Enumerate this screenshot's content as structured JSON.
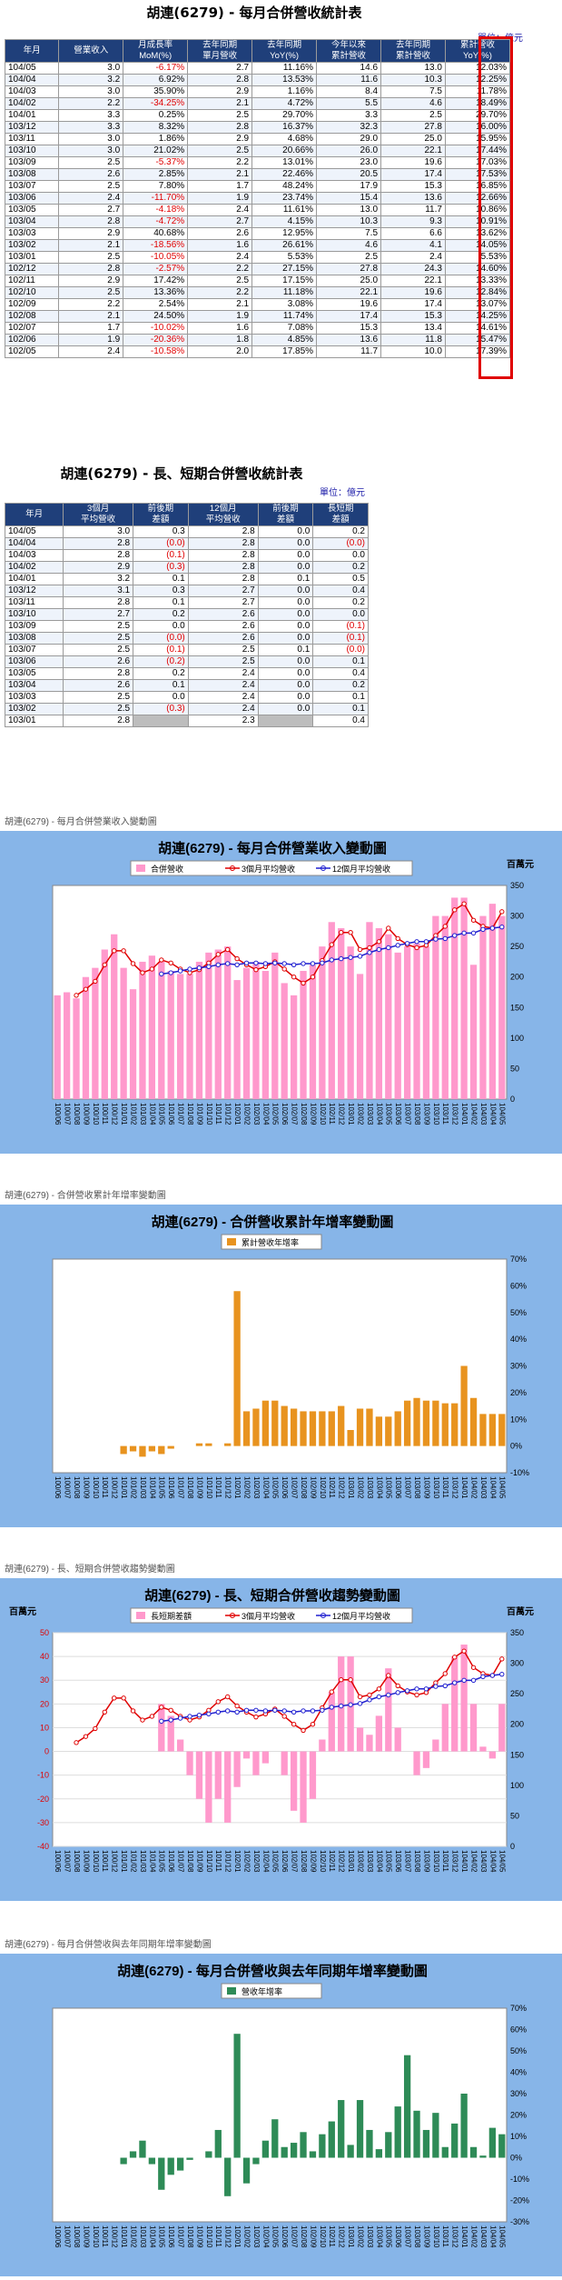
{
  "table1": {
    "title": "胡連(6279) - 每月合併營收統計表",
    "unit": "單位：億元",
    "headers": [
      "年月",
      "營業收入",
      "月成長率 MoM(%)",
      "去年同期 單月營收",
      "去年同期 YoY(%)",
      "今年以來 累計營收",
      "去年同期 累計營收",
      "累計營收 YoY(%)"
    ],
    "rows": [
      [
        "104/05",
        "3.0",
        "-6.17%",
        "2.7",
        "11.16%",
        "14.6",
        "13.0",
        "12.03%"
      ],
      [
        "104/04",
        "3.2",
        "6.92%",
        "2.8",
        "13.53%",
        "11.6",
        "10.3",
        "12.25%"
      ],
      [
        "104/03",
        "3.0",
        "35.90%",
        "2.9",
        "1.16%",
        "8.4",
        "7.5",
        "11.78%"
      ],
      [
        "104/02",
        "2.2",
        "-34.25%",
        "2.1",
        "4.72%",
        "5.5",
        "4.6",
        "18.49%"
      ],
      [
        "104/01",
        "3.3",
        "0.25%",
        "2.5",
        "29.70%",
        "3.3",
        "2.5",
        "29.70%"
      ],
      [
        "103/12",
        "3.3",
        "8.32%",
        "2.8",
        "16.37%",
        "32.3",
        "27.8",
        "16.00%"
      ],
      [
        "103/11",
        "3.0",
        "1.86%",
        "2.9",
        "4.68%",
        "29.0",
        "25.0",
        "15.95%"
      ],
      [
        "103/10",
        "3.0",
        "21.02%",
        "2.5",
        "20.66%",
        "26.0",
        "22.1",
        "17.44%"
      ],
      [
        "103/09",
        "2.5",
        "-5.37%",
        "2.2",
        "13.01%",
        "23.0",
        "19.6",
        "17.03%"
      ],
      [
        "103/08",
        "2.6",
        "2.85%",
        "2.1",
        "22.46%",
        "20.5",
        "17.4",
        "17.53%"
      ],
      [
        "103/07",
        "2.5",
        "7.80%",
        "1.7",
        "48.24%",
        "17.9",
        "15.3",
        "16.85%"
      ],
      [
        "103/06",
        "2.4",
        "-11.70%",
        "1.9",
        "23.74%",
        "15.4",
        "13.6",
        "12.66%"
      ],
      [
        "103/05",
        "2.7",
        "-4.18%",
        "2.4",
        "11.61%",
        "13.0",
        "11.7",
        "10.86%"
      ],
      [
        "103/04",
        "2.8",
        "-4.72%",
        "2.7",
        "4.15%",
        "10.3",
        "9.3",
        "10.91%"
      ],
      [
        "103/03",
        "2.9",
        "40.68%",
        "2.6",
        "12.95%",
        "7.5",
        "6.6",
        "13.62%"
      ],
      [
        "103/02",
        "2.1",
        "-18.56%",
        "1.6",
        "26.61%",
        "4.6",
        "4.1",
        "14.05%"
      ],
      [
        "103/01",
        "2.5",
        "-10.05%",
        "2.4",
        "5.53%",
        "2.5",
        "2.4",
        "5.53%"
      ],
      [
        "102/12",
        "2.8",
        "-2.57%",
        "2.2",
        "27.15%",
        "27.8",
        "24.3",
        "14.60%"
      ],
      [
        "102/11",
        "2.9",
        "17.42%",
        "2.5",
        "17.15%",
        "25.0",
        "22.1",
        "13.33%"
      ],
      [
        "102/10",
        "2.5",
        "13.36%",
        "2.2",
        "11.18%",
        "22.1",
        "19.6",
        "12.84%"
      ],
      [
        "102/09",
        "2.2",
        "2.54%",
        "2.1",
        "3.08%",
        "19.6",
        "17.4",
        "13.07%"
      ],
      [
        "102/08",
        "2.1",
        "24.50%",
        "1.9",
        "11.74%",
        "17.4",
        "15.3",
        "14.25%"
      ],
      [
        "102/07",
        "1.7",
        "-10.02%",
        "1.6",
        "7.08%",
        "15.3",
        "13.4",
        "14.61%"
      ],
      [
        "102/06",
        "1.9",
        "-20.36%",
        "1.8",
        "4.85%",
        "13.6",
        "11.8",
        "15.47%"
      ],
      [
        "102/05",
        "2.4",
        "-10.58%",
        "2.0",
        "17.85%",
        "11.7",
        "10.0",
        "17.39%"
      ]
    ]
  },
  "table2": {
    "title": "胡連(6279) - 長、短期合併營收統計表",
    "unit": "單位：億元",
    "headers": [
      "年月",
      "3個月 平均營收",
      "前後期 差額",
      "12個月 平均營收",
      "前後期 差額",
      "長短期 差額"
    ],
    "rows": [
      [
        "104/05",
        "3.0",
        "0.3",
        "2.8",
        "0.0",
        "0.2"
      ],
      [
        "104/04",
        "2.8",
        "(0.0)",
        "2.8",
        "0.0",
        "(0.0)"
      ],
      [
        "104/03",
        "2.8",
        "(0.1)",
        "2.8",
        "0.0",
        "0.0"
      ],
      [
        "104/02",
        "2.9",
        "(0.3)",
        "2.8",
        "0.0",
        "0.2"
      ],
      [
        "104/01",
        "3.2",
        "0.1",
        "2.8",
        "0.1",
        "0.5"
      ],
      [
        "103/12",
        "3.1",
        "0.3",
        "2.7",
        "0.0",
        "0.4"
      ],
      [
        "103/11",
        "2.8",
        "0.1",
        "2.7",
        "0.0",
        "0.2"
      ],
      [
        "103/10",
        "2.7",
        "0.2",
        "2.6",
        "0.0",
        "0.0"
      ],
      [
        "103/09",
        "2.5",
        "0.0",
        "2.6",
        "0.0",
        "(0.1)"
      ],
      [
        "103/08",
        "2.5",
        "(0.0)",
        "2.6",
        "0.0",
        "(0.1)"
      ],
      [
        "103/07",
        "2.5",
        "(0.1)",
        "2.5",
        "0.1",
        "(0.0)"
      ],
      [
        "103/06",
        "2.6",
        "(0.2)",
        "2.5",
        "0.0",
        "0.1"
      ],
      [
        "103/05",
        "2.8",
        "0.2",
        "2.4",
        "0.0",
        "0.4"
      ],
      [
        "103/04",
        "2.6",
        "0.1",
        "2.4",
        "0.0",
        "0.2"
      ],
      [
        "103/03",
        "2.5",
        "0.0",
        "2.4",
        "0.0",
        "0.1"
      ],
      [
        "103/02",
        "2.5",
        "(0.3)",
        "2.4",
        "0.0",
        "0.1"
      ],
      [
        "103/01",
        "2.8",
        "",
        "2.3",
        "",
        "0.4"
      ]
    ]
  },
  "captions": {
    "c1": "胡連(6279) - 每月合併營業收入變動圖",
    "c2": "胡連(6279) - 合併營收累計年增率變動圖",
    "c3": "胡連(6279) - 長、短期合併營收趨勢變動圖",
    "c4": "胡連(6279) - 每月合併營收與去年同期年增率變動圖"
  },
  "colors": {
    "header_bg": "#1f3f7a",
    "panel_bg": "#87b5e8",
    "pink": "#ff99cc",
    "orange": "#e8931f",
    "green": "#2e8b57",
    "red": "#e00000",
    "blue": "#1f1fd0"
  },
  "months": [
    "100/06",
    "100/07",
    "100/08",
    "100/09",
    "100/10",
    "100/11",
    "100/12",
    "101/01",
    "101/02",
    "101/03",
    "101/04",
    "101/05",
    "101/06",
    "101/07",
    "101/08",
    "101/09",
    "101/10",
    "101/11",
    "101/12",
    "102/01",
    "102/02",
    "102/03",
    "102/04",
    "102/05",
    "102/06",
    "102/07",
    "102/08",
    "102/09",
    "102/10",
    "102/11",
    "102/12",
    "103/01",
    "103/02",
    "103/03",
    "103/04",
    "103/05",
    "103/06",
    "103/07",
    "103/08",
    "103/09",
    "103/10",
    "103/11",
    "103/12",
    "104/01",
    "104/02",
    "104/03",
    "104/04",
    "104/05"
  ],
  "chart_data": [
    {
      "type": "bar",
      "title": "胡連(6279) - 每月合併營業收入變動圖",
      "unit_label": "百萬元",
      "ylim": [
        0,
        350
      ],
      "yticks": [
        0,
        50,
        100,
        150,
        200,
        250,
        300,
        350
      ],
      "legend": [
        "合併營收",
        "3個月平均營收",
        "12個月平均營收"
      ],
      "legend_position": "top",
      "series": [
        {
          "name": "合併營收",
          "type": "bar",
          "values": [
            170,
            175,
            165,
            200,
            215,
            245,
            270,
            215,
            180,
            225,
            235,
            225,
            210,
            205,
            205,
            225,
            240,
            245,
            250,
            195,
            215,
            225,
            210,
            240,
            190,
            170,
            210,
            220,
            250,
            290,
            280,
            250,
            205,
            290,
            280,
            270,
            240,
            250,
            255,
            250,
            300,
            300,
            330,
            330,
            220,
            300,
            320,
            300
          ]
        },
        {
          "name": "3個月平均營收",
          "type": "line",
          "values": [
            null,
            null,
            170,
            180,
            193,
            220,
            243,
            243,
            222,
            207,
            213,
            228,
            223,
            213,
            207,
            212,
            223,
            237,
            245,
            230,
            220,
            212,
            217,
            225,
            213,
            200,
            190,
            200,
            227,
            253,
            273,
            273,
            245,
            248,
            258,
            280,
            263,
            253,
            248,
            252,
            268,
            283,
            310,
            320,
            293,
            283,
            280,
            307
          ]
        },
        {
          "name": "12個月平均營收",
          "type": "line",
          "values": [
            null,
            null,
            null,
            null,
            null,
            null,
            null,
            null,
            null,
            null,
            null,
            205,
            207,
            210,
            213,
            215,
            217,
            220,
            222,
            220,
            223,
            223,
            222,
            223,
            222,
            220,
            222,
            222,
            223,
            228,
            230,
            232,
            234,
            240,
            245,
            248,
            252,
            255,
            258,
            258,
            262,
            263,
            268,
            272,
            272,
            278,
            280,
            282
          ]
        }
      ]
    },
    {
      "type": "bar",
      "title": "胡連(6279) - 合併營收累計年增率變動圖",
      "ylim": [
        -10,
        70
      ],
      "yticks": [
        "-10%",
        "0%",
        "10%",
        "20%",
        "30%",
        "40%",
        "50%",
        "60%",
        "70%"
      ],
      "legend": [
        "累計營收年增率"
      ],
      "legend_position": "top",
      "series": [
        {
          "name": "累計營收年增率",
          "values": [
            null,
            null,
            null,
            null,
            null,
            null,
            null,
            -3,
            -2,
            -4,
            -2,
            -3,
            -1,
            0,
            0,
            1,
            1,
            0,
            1,
            58,
            13,
            14,
            17,
            17,
            15,
            14,
            13,
            13,
            13,
            13,
            15,
            6,
            14,
            14,
            11,
            11,
            13,
            17,
            18,
            17,
            17,
            16,
            16,
            30,
            18,
            12,
            12,
            12
          ]
        }
      ]
    },
    {
      "type": "bar",
      "title": "胡連(6279) - 長、短期合併營收趨勢變動圖",
      "unit_label": "百萬元",
      "left_ylim": [
        -40,
        50
      ],
      "left_yticks": [
        -40,
        -30,
        -20,
        -10,
        0,
        10,
        20,
        30,
        40,
        50
      ],
      "right_ylim": [
        0,
        350
      ],
      "right_yticks": [
        0,
        50,
        100,
        150,
        200,
        250,
        300,
        350
      ],
      "legend": [
        "長短期差額",
        "3個月平均營收",
        "12個月平均營收"
      ],
      "legend_position": "top",
      "series": [
        {
          "name": "長短期差額",
          "axis": "left",
          "values": [
            null,
            null,
            null,
            null,
            null,
            null,
            null,
            null,
            null,
            null,
            null,
            20,
            15,
            5,
            -10,
            -20,
            -30,
            -20,
            -30,
            -15,
            -3,
            -10,
            -5,
            0,
            -10,
            -25,
            -30,
            -20,
            5,
            25,
            40,
            40,
            10,
            7,
            15,
            35,
            10,
            0,
            -10,
            -7,
            5,
            20,
            40,
            45,
            20,
            2,
            -3,
            20
          ]
        },
        {
          "name": "3個月平均營收",
          "axis": "right",
          "values": [
            null,
            null,
            170,
            180,
            193,
            220,
            243,
            243,
            222,
            207,
            213,
            228,
            223,
            213,
            207,
            212,
            223,
            237,
            245,
            230,
            220,
            212,
            217,
            225,
            213,
            200,
            190,
            200,
            227,
            253,
            273,
            273,
            245,
            248,
            258,
            280,
            263,
            253,
            248,
            252,
            268,
            283,
            310,
            320,
            293,
            283,
            280,
            307
          ]
        },
        {
          "name": "12個月平均營收",
          "axis": "right",
          "values": [
            null,
            null,
            null,
            null,
            null,
            null,
            null,
            null,
            null,
            null,
            null,
            205,
            207,
            210,
            213,
            215,
            217,
            220,
            222,
            220,
            223,
            223,
            222,
            223,
            222,
            220,
            222,
            222,
            223,
            228,
            230,
            232,
            234,
            240,
            245,
            248,
            252,
            255,
            258,
            258,
            262,
            263,
            268,
            272,
            272,
            278,
            280,
            282
          ]
        }
      ]
    },
    {
      "type": "bar",
      "title": "胡連(6279) - 每月合併營收與去年同期年增率變動圖",
      "ylim": [
        -30,
        70
      ],
      "yticks": [
        "-30%",
        "-20%",
        "-10%",
        "0%",
        "10%",
        "20%",
        "30%",
        "40%",
        "50%",
        "60%",
        "70%"
      ],
      "legend": [
        "營收年增率"
      ],
      "legend_position": "top",
      "series": [
        {
          "name": "營收年增率",
          "values": [
            null,
            null,
            null,
            null,
            null,
            null,
            null,
            -3,
            3,
            8,
            -3,
            -15,
            -8,
            -6,
            -1,
            0,
            3,
            13,
            -18,
            58,
            -12,
            -3,
            8,
            18,
            5,
            7,
            12,
            3,
            11,
            17,
            27,
            6,
            27,
            13,
            4,
            12,
            24,
            48,
            22,
            13,
            21,
            5,
            16,
            30,
            5,
            1,
            14,
            11
          ]
        }
      ]
    }
  ]
}
